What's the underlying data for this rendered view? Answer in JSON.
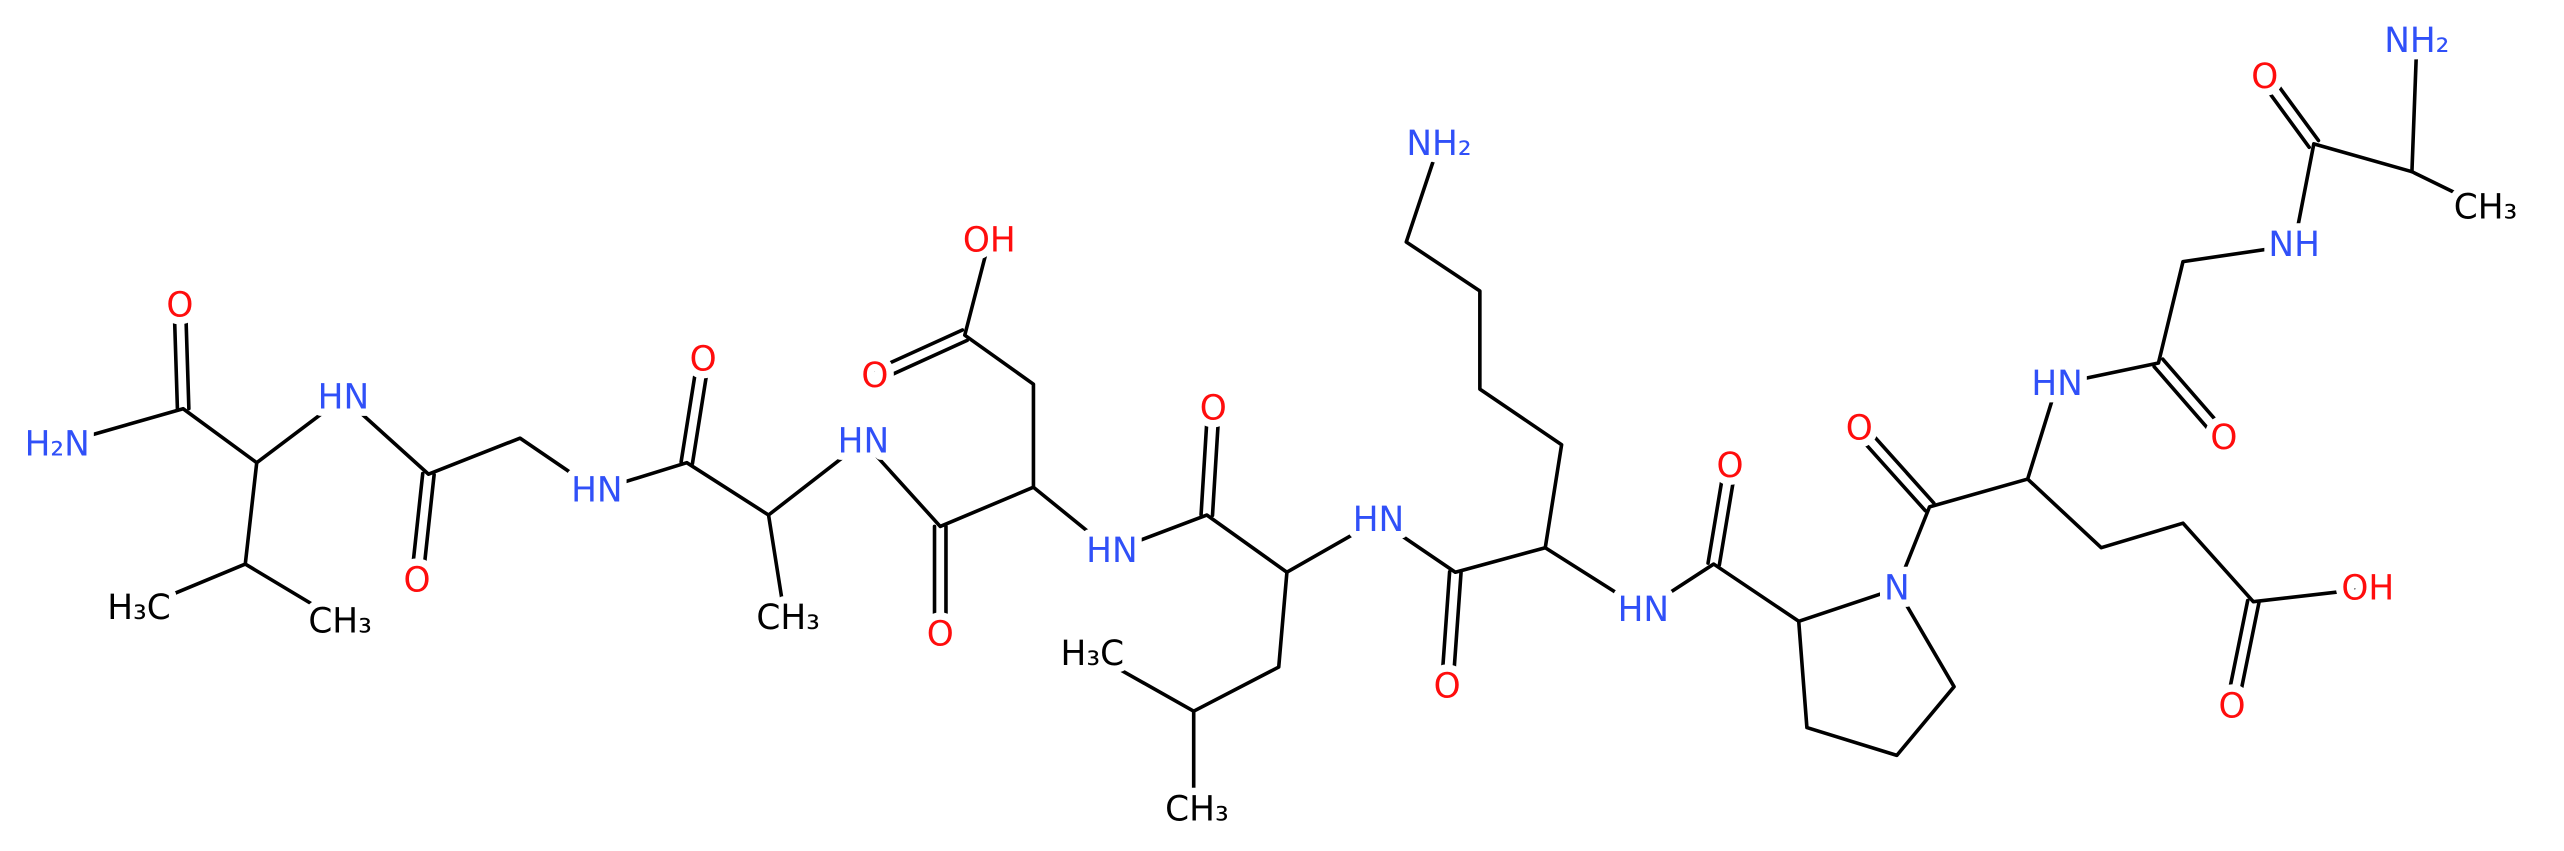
{
  "labels": [
    "O",
    "H₂N",
    "HN",
    "H₃C",
    "CH₃",
    "O",
    "HN",
    "O",
    "CH₃",
    "HN",
    "O",
    "OH",
    "O",
    "HN",
    "O",
    "H₃C",
    "CH₃",
    "HN",
    "O",
    "NH₂",
    "HN",
    "O",
    "N",
    "O",
    "HN",
    "O",
    "NH",
    "O",
    "NH₂",
    "CH₃",
    "OH",
    "O"
  ]
}
